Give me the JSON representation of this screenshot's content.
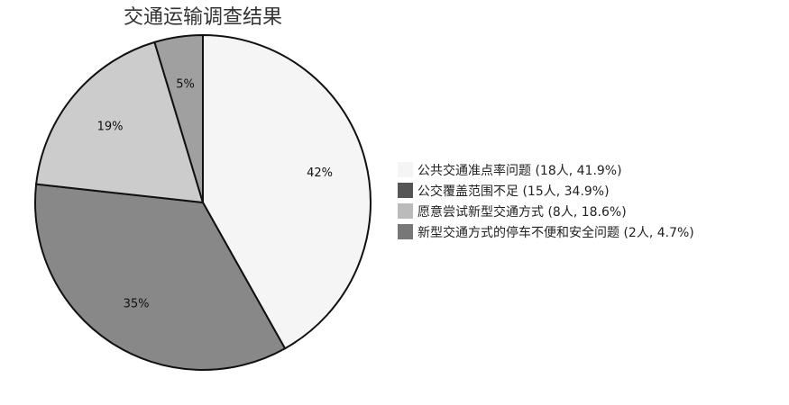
{
  "chart_data": {
    "type": "pie",
    "title": "交通运输调查结果",
    "slices": [
      {
        "legend": "公共交通准点率问题 (18人, 41.9%)",
        "value": 18,
        "percent": 41.9,
        "label": "42%",
        "color": "#f5f5f5"
      },
      {
        "legend": "公交覆盖范围不足 (15人, 34.9%)",
        "value": 15,
        "percent": 34.9,
        "label": "35%",
        "color": "#888888"
      },
      {
        "legend": "愿意尝试新型交通方式 (8人, 18.6%)",
        "value": 8,
        "percent": 18.6,
        "label": "19%",
        "color": "#cccccc"
      },
      {
        "legend": "新型交通方式的停车不便和安全问题 (2人, 4.7%)",
        "value": 2,
        "percent": 4.7,
        "label": "5%",
        "color": "#a0a0a0"
      }
    ],
    "legend_swatch_colors": [
      "#f5f5f5",
      "#555555",
      "#bbbbbb",
      "#777777"
    ],
    "legend_position": "right",
    "start_angle_deg": 0,
    "direction": "clockwise"
  }
}
